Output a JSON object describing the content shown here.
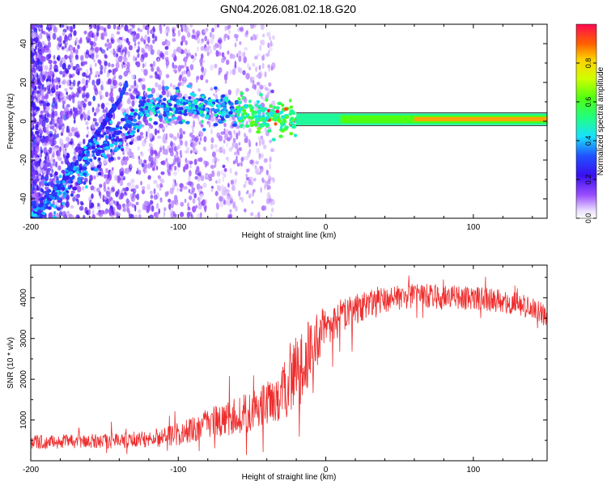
{
  "title": "GN04.2026.081.02.18.G20",
  "chart_data": [
    {
      "type": "heatmap",
      "xlabel": "Height of straight line (km)",
      "ylabel": "Frequency (Hz)",
      "xlim": [
        -200,
        150
      ],
      "ylim": [
        -50,
        50
      ],
      "x_ticks": [
        -200,
        -100,
        0,
        100
      ],
      "y_ticks": [
        -40,
        -20,
        0,
        20,
        40
      ],
      "x_tick_labels": [
        "-200",
        "-100",
        "0",
        "100"
      ],
      "y_tick_labels": [
        "-40",
        "-20",
        "0",
        "20",
        "40"
      ],
      "colorbar": {
        "label": "Normalized spectral amplitude",
        "range": [
          0.0,
          1.0
        ],
        "ticks": [
          0.0,
          0.2,
          0.4,
          0.6,
          0.8
        ],
        "tick_labels": [
          "0.0",
          "0.2",
          "0.4",
          "0.6",
          "0.8"
        ]
      },
      "features": {
        "main_line": {
          "x": [
            -200,
            -160,
            -120,
            -100,
            -60,
            -40,
            -20,
            0,
            20,
            60,
            100,
            150
          ],
          "freq_hz": [
            -50,
            -20,
            8,
            8,
            6,
            3,
            1,
            1,
            1,
            1,
            1,
            1
          ]
        },
        "diagonal_line": {
          "x": [
            -200,
            -190,
            -180,
            -170,
            -160,
            -150,
            -140,
            -135
          ],
          "freq_hz": [
            -50,
            -43,
            -33,
            -22,
            -12,
            -1,
            11,
            20
          ]
        }
      }
    },
    {
      "type": "line",
      "xlabel": "Height of straight line (km)",
      "ylabel": "SNR (10 * v/v)",
      "xlim": [
        -200,
        150
      ],
      "ylim": [
        0,
        4800
      ],
      "x_ticks": [
        -200,
        -100,
        0,
        100
      ],
      "y_ticks": [
        1000,
        2000,
        3000,
        4000
      ],
      "x_tick_labels": [
        "-200",
        "-100",
        "0",
        "100"
      ],
      "y_tick_labels": [
        "1000",
        "2000",
        "3000",
        "4000"
      ],
      "series": [
        {
          "name": "SNR",
          "color": "#ee2d2d",
          "x": [
            -200,
            -180,
            -160,
            -140,
            -120,
            -100,
            -90,
            -80,
            -70,
            -60,
            -50,
            -40,
            -30,
            -25,
            -20,
            -15,
            -10,
            -5,
            0,
            10,
            20,
            30,
            40,
            50,
            60,
            70,
            80,
            90,
            100,
            110,
            120,
            130,
            140,
            150
          ],
          "mean": [
            450,
            470,
            480,
            500,
            540,
            650,
            780,
            900,
            1000,
            1100,
            1220,
            1400,
            1620,
            1900,
            2250,
            2300,
            2750,
            3050,
            3250,
            3520,
            3700,
            3850,
            3950,
            4000,
            4050,
            4050,
            4000,
            4000,
            4000,
            3950,
            3900,
            3850,
            3750,
            3550
          ],
          "spread": [
            180,
            180,
            180,
            200,
            220,
            280,
            320,
            380,
            420,
            460,
            500,
            550,
            650,
            800,
            900,
            900,
            800,
            700,
            500,
            450,
            400,
            350,
            320,
            300,
            300,
            300,
            300,
            300,
            300,
            300,
            280,
            280,
            280,
            280
          ]
        }
      ]
    }
  ]
}
